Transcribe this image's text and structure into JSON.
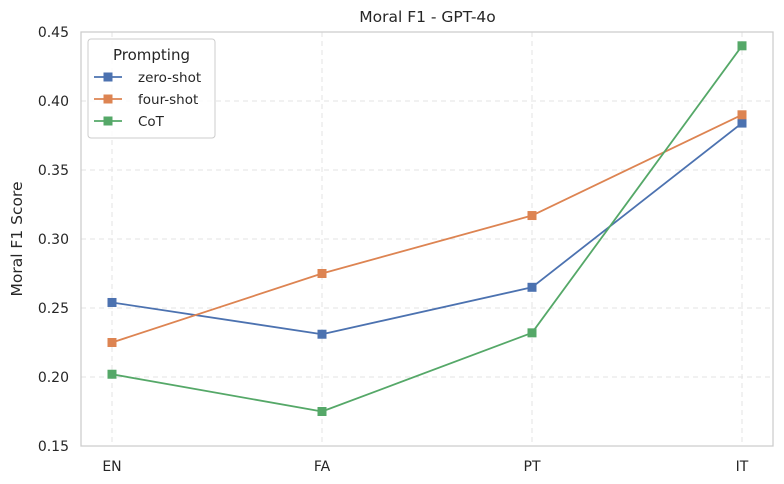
{
  "chart_data": {
    "type": "line",
    "title": "Moral F1 - GPT-4o",
    "xlabel": "",
    "ylabel": "Moral F1 Score",
    "categories": [
      "EN",
      "FA",
      "PT",
      "IT"
    ],
    "ylim": [
      0.15,
      0.45
    ],
    "yticks": [
      "0.15",
      "0.20",
      "0.25",
      "0.30",
      "0.35",
      "0.40",
      "0.45"
    ],
    "grid": true,
    "legend_title": "Prompting",
    "legend_position": "top-left",
    "marker": "square",
    "series": [
      {
        "name": "zero-shot",
        "color": "#4c72b0",
        "values": [
          0.254,
          0.231,
          0.265,
          0.384
        ]
      },
      {
        "name": "four-shot",
        "color": "#dd8452",
        "values": [
          0.225,
          0.275,
          0.317,
          0.39
        ]
      },
      {
        "name": "CoT",
        "color": "#55a868",
        "values": [
          0.202,
          0.175,
          0.232,
          0.44
        ]
      }
    ]
  }
}
